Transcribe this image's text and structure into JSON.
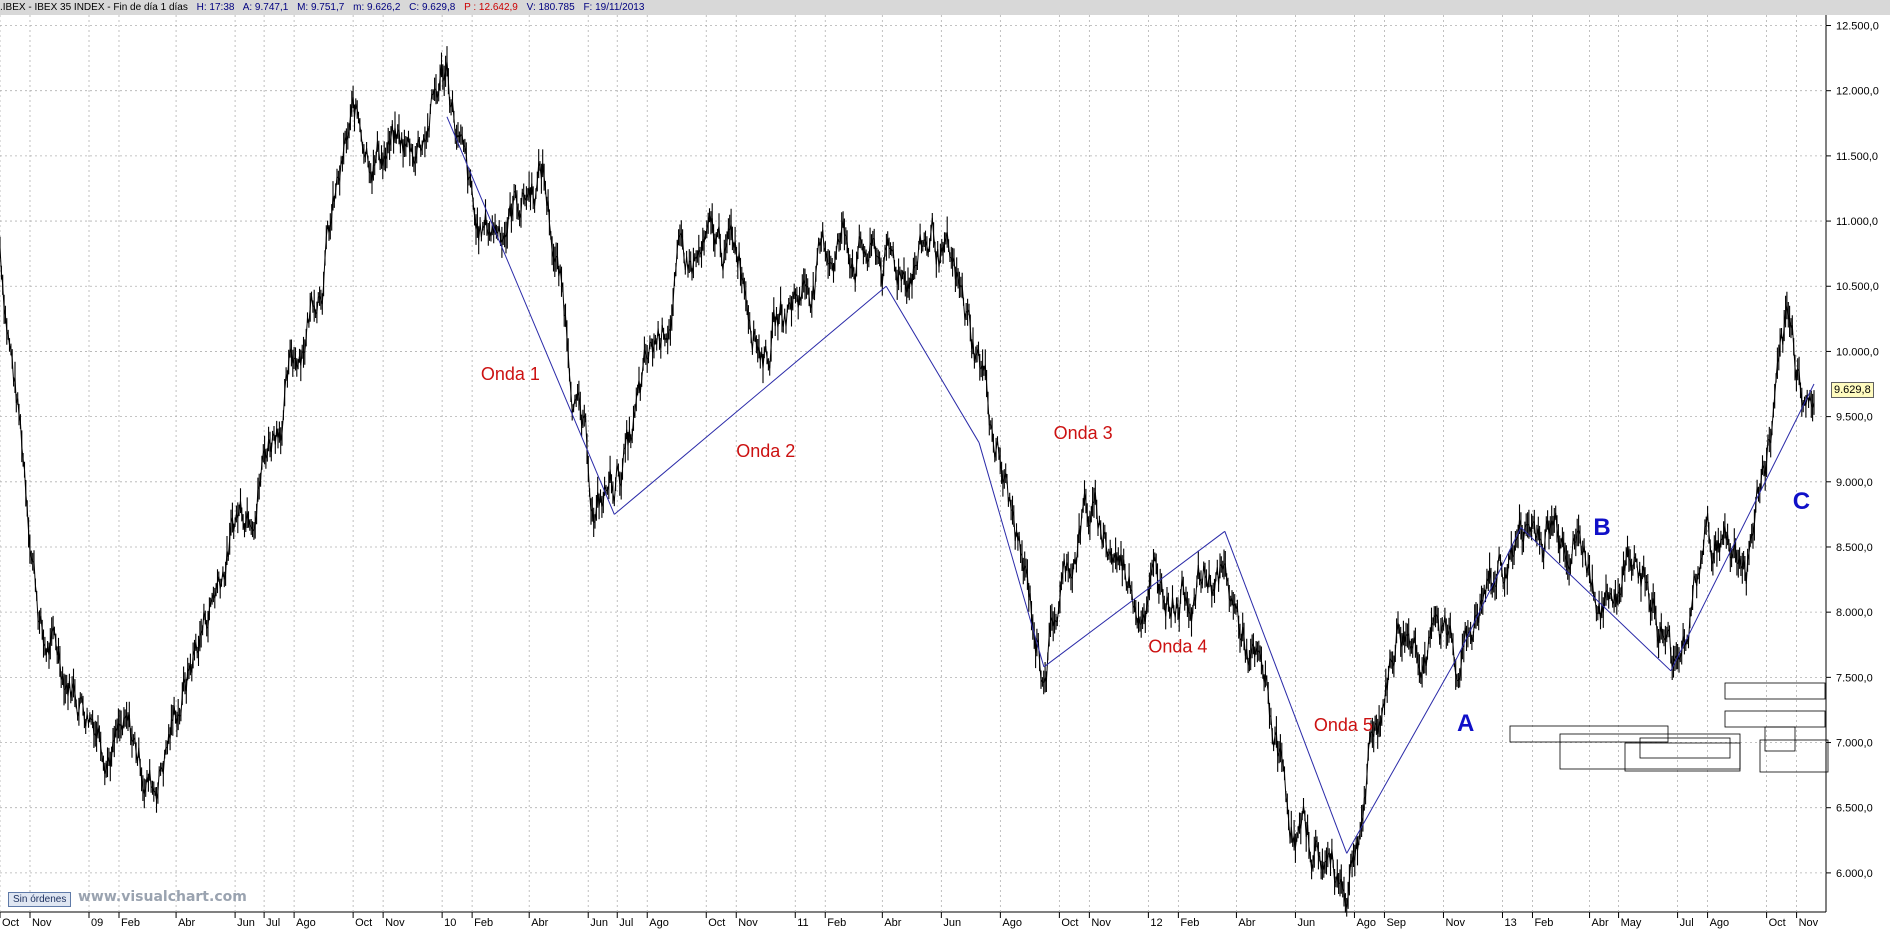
{
  "header": {
    "instrument": ".IBEX - IBEX 35 INDEX - Fin de día 1 días",
    "H": "H: 17:38",
    "A": "A: 9.747,1",
    "M": "M: 9.751,7",
    "m": "m: 9.626,2",
    "C": "C: 9.629,8",
    "P": "P : 12.642,9",
    "V": "V: 180.785",
    "F": "F: 19/11/2013"
  },
  "orders_button": "Sin órdenes",
  "watermark": "www.visualchart.com",
  "last_price_tag": "9.629,8",
  "colors": {
    "candles": "#000000",
    "wave_lines": "#2a2aa8",
    "wave_labels": "#cc1111",
    "abc_labels": "#1010c8",
    "grid": "#b0b0b0",
    "background": "#ffffff"
  },
  "chart_data": {
    "type": "line",
    "title": "IBEX 35 INDEX",
    "ylim": [
      5700,
      12550
    ],
    "y_ticks": [
      "12.500,0",
      "12.000,0",
      "11.500,0",
      "11.000,0",
      "10.500,0",
      "10.000,0",
      "9.500,0",
      "9.000,0",
      "8.500,0",
      "8.000,0",
      "7.500,0",
      "7.000,0",
      "6.500,0",
      "6.000,0"
    ],
    "x_ticks": [
      "Oct",
      "Nov",
      "09",
      "Feb",
      "Abr",
      "Jun",
      "Jul",
      "Ago",
      "Oct",
      "Nov",
      "10",
      "Feb",
      "Abr",
      "Jun",
      "Jul",
      "Ago",
      "Oct",
      "Nov",
      "11",
      "Feb",
      "Abr",
      "Jun",
      "Ago",
      "Oct",
      "Nov",
      "12",
      "Feb",
      "Abr",
      "Jun",
      "Ago",
      "Sep",
      "Nov",
      "13",
      "Feb",
      "Abr",
      "May",
      "Jul",
      "Ago",
      "Oct",
      "Nov"
    ],
    "x": [
      "2008-10-01",
      "2008-11-15",
      "2009-03-09",
      "2009-06-01",
      "2009-08-01",
      "2009-10-01",
      "2009-11-30",
      "2010-01-06",
      "2010-02-05",
      "2010-04-15",
      "2010-06-08",
      "2010-07-15",
      "2010-09-01",
      "2010-11-04",
      "2010-11-30",
      "2011-02-18",
      "2011-04-15",
      "2011-05-24",
      "2011-07-15",
      "2011-09-12",
      "2011-10-27",
      "2011-12-19",
      "2012-03-15",
      "2012-05-01",
      "2012-06-01",
      "2012-07-24",
      "2012-09-15",
      "2012-11-15",
      "2013-01-20",
      "2013-03-15",
      "2013-04-18",
      "2013-05-20",
      "2013-06-24",
      "2013-08-01",
      "2013-09-10",
      "2013-10-22",
      "2013-11-19"
    ],
    "series": [
      {
        "values": [
          10800,
          7800,
          6700,
          8700,
          9900,
          11700,
          11500,
          12200,
          10800,
          11400,
          8700,
          9300,
          10600,
          10800,
          10100,
          10900,
          10600,
          10900,
          9800,
          7600,
          8800,
          8200,
          8300,
          7300,
          6300,
          5950,
          7900,
          7700,
          8600,
          8700,
          8000,
          8600,
          7550,
          8600,
          8400,
          10000,
          9630
        ]
      }
    ],
    "series_count": 1,
    "annotations": [
      {
        "text": "Onda 1",
        "date": "2010-02-10",
        "value": 9780
      },
      {
        "text": "Onda 2",
        "date": "2010-11-01",
        "value": 9190
      },
      {
        "text": "Onda 3",
        "date": "2011-09-25",
        "value": 9330
      },
      {
        "text": "Onda 4",
        "date": "2012-01-01",
        "value": 7690
      },
      {
        "text": "Onda 5",
        "date": "2012-06-20",
        "value": 7090
      },
      {
        "text": "A",
        "date": "2012-11-15",
        "value": 7090
      },
      {
        "text": "B",
        "date": "2013-04-05",
        "value": 8590
      },
      {
        "text": "C",
        "date": "2013-10-28",
        "value": 8790
      }
    ],
    "wave_lines": [
      {
        "x": [
          "2010-01-06",
          "2010-06-28"
        ],
        "y": [
          11800,
          8750
        ]
      },
      {
        "x": [
          "2010-06-28",
          "2011-04-05"
        ],
        "y": [
          8750,
          10500
        ]
      },
      {
        "x": [
          "2011-04-05",
          "2011-07-10"
        ],
        "y": [
          10500,
          9300
        ]
      },
      {
        "x": [
          "2011-07-10",
          "2011-09-15"
        ],
        "y": [
          9300,
          7580
        ]
      },
      {
        "x": [
          "2011-09-15",
          "2012-03-20"
        ],
        "y": [
          7580,
          8620
        ]
      },
      {
        "x": [
          "2012-03-20",
          "2012-07-24"
        ],
        "y": [
          8620,
          6150
        ]
      },
      {
        "x": [
          "2012-07-24",
          "2012-11-15"
        ],
        "y": [
          6150,
          7650
        ]
      },
      {
        "x": [
          "2012-11-15",
          "2013-01-20"
        ],
        "y": [
          7650,
          8650
        ]
      },
      {
        "x": [
          "2013-01-20",
          "2013-06-24"
        ],
        "y": [
          8650,
          7550
        ]
      },
      {
        "x": [
          "2013-06-24",
          "2013-11-19"
        ],
        "y": [
          7550,
          9750
        ]
      }
    ],
    "grid": true,
    "legend": "none"
  }
}
